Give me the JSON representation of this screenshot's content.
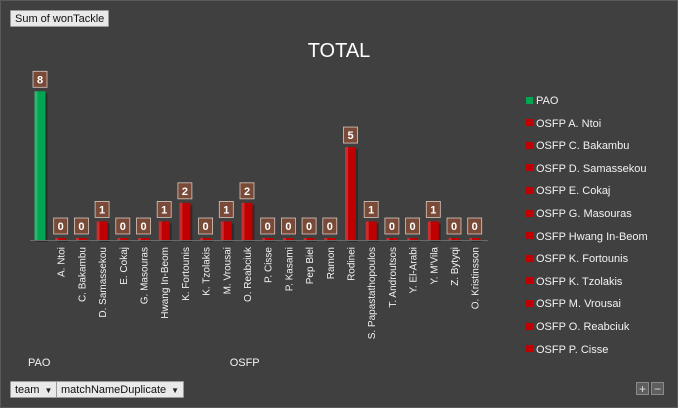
{
  "pivot": {
    "value_field": "Sum of wonTackle",
    "row_fields": [
      "team",
      "matchNameDuplicate"
    ],
    "zoom_in": "+",
    "zoom_out": "−"
  },
  "colors": {
    "PAO": "#00a651",
    "OSFP": "#c00000"
  },
  "chart_data": {
    "type": "bar",
    "title": "TOTAL",
    "groups": [
      {
        "name": "PAO",
        "categories": [
          ""
        ],
        "values": [
          8
        ]
      },
      {
        "name": "OSFP",
        "categories": [
          "A. Ntoi",
          "C. Bakambu",
          "D. Samassekou",
          "E. Cokaj",
          "G. Masouras",
          "Hwang In-Beom",
          "K. Fortounis",
          "K. Tzolakis",
          "M. Vrousai",
          "O. Reabciuk",
          "P. Cisse",
          "P. Kasami",
          "Pep Biel",
          "Ramon",
          "Rodinei",
          "S. Papastathopoulos",
          "T. Androutsos",
          "Y. El-Arabi",
          "Y. M'Vila",
          "Z. Bytyqi",
          "O. Kristinsson"
        ],
        "values": [
          0,
          0,
          1,
          0,
          0,
          1,
          2,
          0,
          1,
          2,
          0,
          0,
          0,
          0,
          5,
          1,
          0,
          0,
          1,
          0,
          0
        ]
      }
    ],
    "ylim": [
      0,
      8.5
    ],
    "grid": false,
    "data_labels": true,
    "legend": {
      "placement": "right",
      "entries": [
        "PAO",
        "OSFP A. Ntoi",
        "OSFP C. Bakambu",
        "OSFP D. Samassekou",
        "OSFP E. Cokaj",
        "OSFP G. Masouras",
        "OSFP Hwang In-Beom",
        "OSFP K. Fortounis",
        "OSFP K. Tzolakis",
        "OSFP M. Vrousai",
        "OSFP O. Reabciuk",
        "OSFP P. Cisse"
      ]
    }
  }
}
